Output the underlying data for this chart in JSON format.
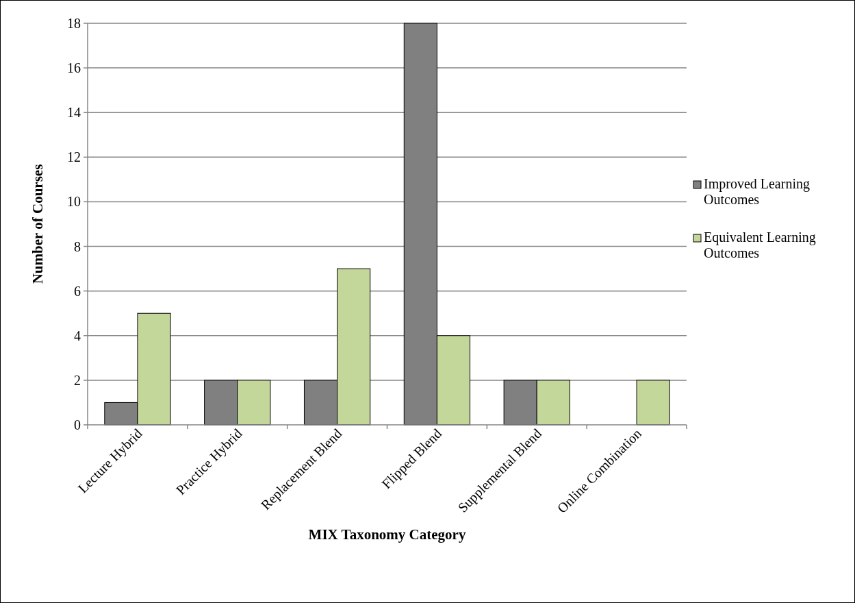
{
  "chart_data": {
    "type": "bar",
    "xlabel": "MIX Taxonomy Category",
    "ylabel": "Number of Courses",
    "categories": [
      "Lecture Hybrid",
      "Practice Hybrid",
      "Replacement Blend",
      "Flipped Blend",
      "Supplemental Blend",
      "Online Combination"
    ],
    "series": [
      {
        "name": "Improved Learning Outcomes",
        "color": "#808080",
        "values": [
          1,
          2,
          2,
          18,
          2,
          0
        ]
      },
      {
        "name": "Equivalent Learning Outcomes",
        "color": "#c4d79b",
        "values": [
          5,
          2,
          7,
          4,
          2,
          2
        ]
      }
    ],
    "ylim": [
      0,
      18
    ],
    "yticks": [
      0,
      2,
      4,
      6,
      8,
      10,
      12,
      14,
      16,
      18
    ],
    "grid": "y",
    "legend": "right"
  }
}
